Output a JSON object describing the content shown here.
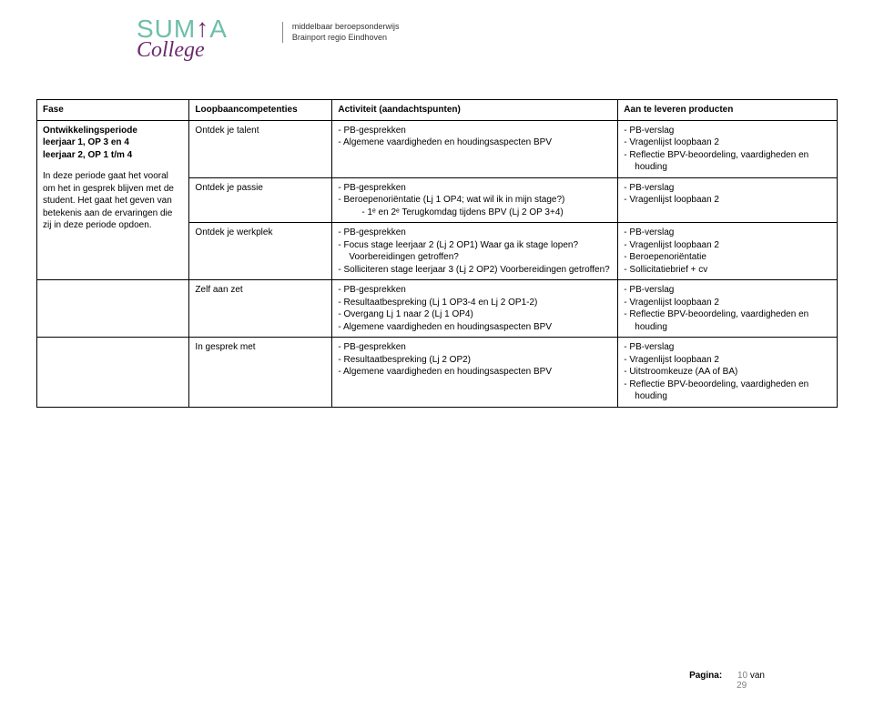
{
  "logo": {
    "line1_prefix": "SUM",
    "line1_suffix": "A",
    "line2": "College",
    "tagline1": "middelbaar beroepsonderwijs",
    "tagline2": "Brainport regio Eindhoven"
  },
  "headers": {
    "c1": "Fase",
    "c2": "Loopbaancompetenties",
    "c3": "Activiteit (aandachtspunten)",
    "c4": "Aan te leveren producten"
  },
  "fase": {
    "title1": "Ontwikkelingsperiode",
    "title2": "leerjaar 1, OP 3 en 4",
    "title3": "leerjaar 2, OP 1 t/m 4",
    "desc": "In deze periode gaat het vooral om het in gesprek blijven met de student. Het gaat het geven van betekenis aan de ervaringen die zij in deze periode opdoen."
  },
  "rows": [
    {
      "comp": "Ontdek je talent",
      "act": [
        "PB-gesprekken",
        "Algemene vaardigheden en houdingsaspecten BPV"
      ],
      "prod": [
        "PB-verslag",
        "Vragenlijst loopbaan 2",
        "Reflectie BPV-beoordeling, vaardigheden en houding"
      ]
    },
    {
      "comp": "Ontdek je passie",
      "act_extra": {
        "a0": "PB-gesprekken",
        "a1": "Beroepenoriëntatie (Lj 1 OP4; wat wil ik in mijn stage?)",
        "sub": "1ᵉ en 2ᵉ Terugkomdag tijdens BPV (Lj 2 OP 3+4)"
      },
      "prod": [
        "PB-verslag",
        "Vragenlijst loopbaan 2"
      ]
    },
    {
      "comp": "Ontdek je werkplek",
      "act": [
        "PB-gesprekken",
        "Focus stage leerjaar 2 (Lj 2 OP1) Waar ga ik stage lopen? Voorbereidingen getroffen?",
        "Solliciteren stage leerjaar 3 (Lj 2 OP2) Voorbereidingen getroffen?"
      ],
      "prod": [
        "PB-verslag",
        "Vragenlijst loopbaan 2",
        "Beroepenoriëntatie",
        "Sollicitatiebrief + cv"
      ]
    },
    {
      "comp": "Zelf aan zet",
      "act": [
        "PB-gesprekken",
        "Resultaatbespreking (Lj 1 OP3-4 en Lj 2 OP1-2)",
        "Overgang Lj 1 naar 2 (Lj 1 OP4)",
        "Algemene vaardigheden en houdingsaspecten BPV"
      ],
      "prod": [
        "PB-verslag",
        "Vragenlijst loopbaan 2",
        "Reflectie BPV-beoordeling, vaardigheden en houding"
      ]
    },
    {
      "comp": "In gesprek met",
      "act": [
        "PB-gesprekken",
        "Resultaatbespreking (Lj 2 OP2)",
        "Algemene vaardigheden en houdingsaspecten BPV"
      ],
      "prod": [
        "PB-verslag",
        "Vragenlijst loopbaan 2",
        "Uitstroomkeuze (AA of BA)",
        "Reflectie BPV-beoordeling, vaardigheden en houding"
      ]
    }
  ],
  "footer": {
    "label": "Pagina:",
    "num": "10",
    "van": "van",
    "total": "29"
  },
  "colors": {
    "brand_teal": "#6dbfa9",
    "brand_purple": "#6b2a6d",
    "text": "#000000",
    "footer_num": "#7e7e7e"
  }
}
